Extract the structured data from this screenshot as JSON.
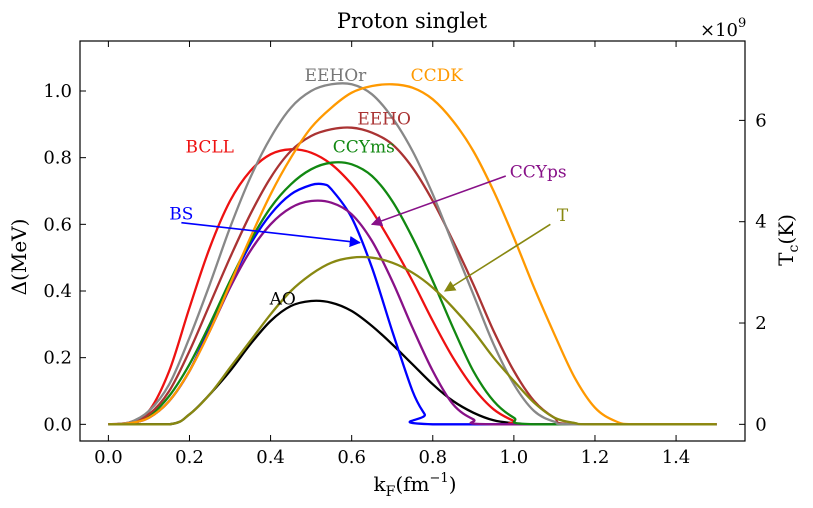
{
  "chart_data": {
    "type": "line",
    "title": "Proton singlet",
    "xlabel": "k_F(fm^-1)",
    "xlabel_main": "k",
    "xlabel_sub": "F",
    "xlabel_paren": "(fm",
    "xlabel_sup": "−1",
    "xlabel_close": ")",
    "ylabel": "Δ(MeV)",
    "y2label_main": "T",
    "y2label_sub": "c",
    "y2label_rest": "(K)",
    "y2_multiplier": "×10^9",
    "y2_mult_base": "×10",
    "y2_mult_exp": "9",
    "xlim": [
      -0.07,
      1.57
    ],
    "ylim": [
      -0.05,
      1.15
    ],
    "y2_per_y": 6.58,
    "xticks": [
      "0.0",
      "0.2",
      "0.4",
      "0.6",
      "0.8",
      "1.0",
      "1.2",
      "1.4"
    ],
    "xtick_values": [
      0.0,
      0.2,
      0.4,
      0.6,
      0.8,
      1.0,
      1.2,
      1.4
    ],
    "yticks": [
      "0.0",
      "0.2",
      "0.4",
      "0.6",
      "0.8",
      "1.0"
    ],
    "ytick_values": [
      0.0,
      0.2,
      0.4,
      0.6,
      0.8,
      1.0
    ],
    "y2ticks": [
      "0",
      "2",
      "4",
      "6"
    ],
    "y2tick_values": [
      0,
      2,
      4,
      6
    ],
    "series": [
      {
        "name": "AO",
        "color": "#000000",
        "label_at": [
          0.43,
          0.36
        ],
        "label_color": "#000000",
        "x": [
          0.0,
          0.15,
          0.2,
          0.25,
          0.3,
          0.35,
          0.4,
          0.45,
          0.5,
          0.55,
          0.6,
          0.65,
          0.7,
          0.75,
          0.8,
          0.85,
          0.9,
          0.95,
          1.0,
          1.05,
          1.5
        ],
        "y": [
          0.0,
          0.0,
          0.03,
          0.09,
          0.16,
          0.24,
          0.31,
          0.355,
          0.37,
          0.365,
          0.34,
          0.295,
          0.24,
          0.18,
          0.12,
          0.07,
          0.035,
          0.012,
          0.003,
          0.0,
          0.0
        ]
      },
      {
        "name": "BS",
        "color": "#0000ff",
        "label_at": [
          0.18,
          0.615
        ],
        "label_color": "#0000ff",
        "arrow": {
          "from": [
            0.18,
            0.605
          ],
          "to": [
            0.62,
            0.545
          ]
        },
        "x": [
          0.0,
          0.05,
          0.1,
          0.15,
          0.2,
          0.25,
          0.3,
          0.35,
          0.4,
          0.45,
          0.5,
          0.53,
          0.55,
          0.6,
          0.65,
          0.7,
          0.75,
          0.78,
          0.8,
          1.5
        ],
        "y": [
          0.0,
          0.003,
          0.02,
          0.07,
          0.16,
          0.29,
          0.42,
          0.54,
          0.63,
          0.69,
          0.718,
          0.72,
          0.705,
          0.62,
          0.47,
          0.28,
          0.1,
          0.03,
          0.0,
          0.0
        ]
      },
      {
        "name": "BCLL",
        "color": "#ee1111",
        "label_at": [
          0.25,
          0.815
        ],
        "label_color": "#ee1111",
        "x": [
          0.0,
          0.05,
          0.1,
          0.15,
          0.2,
          0.25,
          0.3,
          0.35,
          0.4,
          0.45,
          0.5,
          0.55,
          0.6,
          0.65,
          0.7,
          0.75,
          0.8,
          0.85,
          0.9,
          0.95,
          1.0,
          1.03,
          1.5
        ],
        "y": [
          0.0,
          0.005,
          0.04,
          0.16,
          0.35,
          0.53,
          0.67,
          0.76,
          0.81,
          0.825,
          0.815,
          0.78,
          0.72,
          0.64,
          0.54,
          0.43,
          0.31,
          0.2,
          0.11,
          0.045,
          0.01,
          0.0,
          0.0
        ]
      },
      {
        "name": "CCYps",
        "color": "#881188",
        "label_at": [
          1.06,
          0.74
        ],
        "label_color": "#881188",
        "arrow": {
          "from": [
            0.98,
            0.745
          ],
          "to": [
            0.65,
            0.6
          ]
        },
        "x": [
          0.0,
          0.05,
          0.1,
          0.15,
          0.2,
          0.25,
          0.3,
          0.35,
          0.4,
          0.45,
          0.5,
          0.55,
          0.6,
          0.65,
          0.7,
          0.75,
          0.8,
          0.85,
          0.9,
          0.95,
          1.5
        ],
        "y": [
          0.0,
          0.003,
          0.02,
          0.07,
          0.16,
          0.28,
          0.41,
          0.52,
          0.6,
          0.65,
          0.67,
          0.665,
          0.63,
          0.55,
          0.43,
          0.29,
          0.16,
          0.06,
          0.015,
          0.0,
          0.0
        ]
      },
      {
        "name": "CCYms",
        "color": "#118811",
        "label_at": [
          0.63,
          0.815
        ],
        "label_color": "#118811",
        "x": [
          0.0,
          0.05,
          0.1,
          0.15,
          0.2,
          0.25,
          0.3,
          0.35,
          0.4,
          0.45,
          0.5,
          0.55,
          0.6,
          0.65,
          0.7,
          0.75,
          0.8,
          0.85,
          0.9,
          0.95,
          1.0,
          1.05,
          1.5
        ],
        "y": [
          0.0,
          0.004,
          0.025,
          0.085,
          0.18,
          0.3,
          0.43,
          0.55,
          0.65,
          0.72,
          0.765,
          0.785,
          0.78,
          0.745,
          0.67,
          0.56,
          0.43,
          0.29,
          0.16,
          0.07,
          0.02,
          0.0,
          0.0
        ]
      },
      {
        "name": "EEHO",
        "color": "#aa3333",
        "label_at": [
          0.68,
          0.9
        ],
        "label_color": "#aa3333",
        "x": [
          0.0,
          0.05,
          0.1,
          0.15,
          0.2,
          0.25,
          0.3,
          0.35,
          0.4,
          0.45,
          0.5,
          0.55,
          0.6,
          0.65,
          0.7,
          0.75,
          0.8,
          0.85,
          0.9,
          0.95,
          1.0,
          1.05,
          1.1,
          1.15,
          1.5
        ],
        "y": [
          0.0,
          0.004,
          0.03,
          0.1,
          0.22,
          0.36,
          0.5,
          0.63,
          0.74,
          0.82,
          0.865,
          0.885,
          0.89,
          0.875,
          0.84,
          0.77,
          0.67,
          0.55,
          0.42,
          0.28,
          0.16,
          0.07,
          0.02,
          0.0,
          0.0
        ]
      },
      {
        "name": "EEHOr",
        "color": "#888888",
        "label_at": [
          0.56,
          1.03
        ],
        "label_color": "#777777",
        "x": [
          0.0,
          0.05,
          0.1,
          0.15,
          0.2,
          0.25,
          0.3,
          0.35,
          0.4,
          0.45,
          0.5,
          0.55,
          0.6,
          0.65,
          0.7,
          0.75,
          0.8,
          0.85,
          0.9,
          0.95,
          1.0,
          1.05,
          1.1,
          1.15,
          1.5
        ],
        "y": [
          0.0,
          0.005,
          0.04,
          0.12,
          0.26,
          0.42,
          0.59,
          0.74,
          0.86,
          0.95,
          1.0,
          1.02,
          1.02,
          0.99,
          0.92,
          0.82,
          0.69,
          0.54,
          0.39,
          0.24,
          0.12,
          0.04,
          0.008,
          0.0,
          0.0
        ]
      },
      {
        "name": "CCDK",
        "color": "#ff9900",
        "label_at": [
          0.81,
          1.03
        ],
        "label_color": "#ff9900",
        "x": [
          0.0,
          0.05,
          0.1,
          0.15,
          0.2,
          0.25,
          0.3,
          0.35,
          0.4,
          0.45,
          0.5,
          0.55,
          0.6,
          0.65,
          0.7,
          0.75,
          0.8,
          0.85,
          0.9,
          0.95,
          1.0,
          1.05,
          1.1,
          1.15,
          1.2,
          1.25,
          1.3,
          1.5
        ],
        "y": [
          0.0,
          0.003,
          0.02,
          0.07,
          0.16,
          0.28,
          0.42,
          0.56,
          0.69,
          0.8,
          0.89,
          0.95,
          0.995,
          1.015,
          1.02,
          1.01,
          0.975,
          0.91,
          0.82,
          0.7,
          0.56,
          0.41,
          0.27,
          0.14,
          0.05,
          0.01,
          0.0,
          0.0
        ]
      },
      {
        "name": "T",
        "color": "#888811",
        "label_at": [
          1.12,
          0.61
        ],
        "label_color": "#888811",
        "arrow": {
          "from": [
            1.09,
            0.6
          ],
          "to": [
            0.83,
            0.4
          ]
        },
        "x": [
          0.0,
          0.15,
          0.2,
          0.25,
          0.3,
          0.35,
          0.4,
          0.45,
          0.5,
          0.55,
          0.6,
          0.65,
          0.7,
          0.75,
          0.8,
          0.85,
          0.9,
          0.95,
          1.0,
          1.05,
          1.1,
          1.15,
          1.2,
          1.5
        ],
        "y": [
          0.0,
          0.0,
          0.03,
          0.09,
          0.17,
          0.25,
          0.33,
          0.4,
          0.45,
          0.485,
          0.5,
          0.5,
          0.485,
          0.455,
          0.41,
          0.35,
          0.28,
          0.2,
          0.13,
          0.065,
          0.02,
          0.004,
          0.0,
          0.0
        ]
      }
    ]
  }
}
